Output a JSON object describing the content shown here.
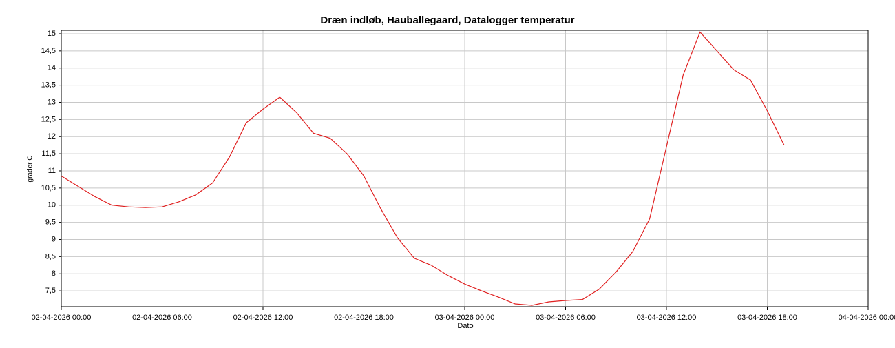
{
  "chart_data": {
    "type": "line",
    "title": "Dræn indløb, Hauballegaard, Datalogger temperatur",
    "x_label": "Dato",
    "y_label": "grader C",
    "x": [
      "02-04-2026 00:00",
      "02-04-2026 01:00",
      "02-04-2026 02:00",
      "02-04-2026 03:00",
      "02-04-2026 04:00",
      "02-04-2026 05:00",
      "02-04-2026 06:00",
      "02-04-2026 07:00",
      "02-04-2026 08:00",
      "02-04-2026 09:00",
      "02-04-2026 10:00",
      "02-04-2026 11:00",
      "02-04-2026 12:00",
      "02-04-2026 13:00",
      "02-04-2026 14:00",
      "02-04-2026 15:00",
      "02-04-2026 16:00",
      "02-04-2026 17:00",
      "02-04-2026 18:00",
      "02-04-2026 19:00",
      "02-04-2026 20:00",
      "02-04-2026 21:00",
      "02-04-2026 22:00",
      "02-04-2026 23:00",
      "03-04-2026 00:00",
      "03-04-2026 01:00",
      "03-04-2026 02:00",
      "03-04-2026 03:00",
      "03-04-2026 04:00",
      "03-04-2026 05:00",
      "03-04-2026 06:00",
      "03-04-2026 07:00",
      "03-04-2026 08:00",
      "03-04-2026 09:00",
      "03-04-2026 10:00",
      "03-04-2026 11:00",
      "03-04-2026 12:00",
      "03-04-2026 13:00",
      "03-04-2026 14:00",
      "03-04-2026 15:00",
      "03-04-2026 16:00",
      "03-04-2026 17:00",
      "03-04-2026 18:00",
      "03-04-2026 19:00"
    ],
    "series": [
      {
        "name": "temperatur",
        "color": "#e02020",
        "values": [
          10.85,
          10.55,
          10.25,
          10.0,
          9.95,
          9.93,
          9.95,
          10.1,
          10.3,
          10.65,
          11.4,
          12.4,
          12.8,
          13.15,
          12.7,
          12.1,
          11.95,
          11.5,
          10.85,
          9.9,
          9.05,
          8.45,
          8.25,
          7.95,
          7.7,
          7.5,
          7.32,
          7.12,
          7.08,
          7.18,
          7.22,
          7.25,
          7.55,
          8.05,
          8.65,
          9.6,
          11.7,
          13.8,
          15.05,
          14.5,
          13.95,
          13.65,
          12.75,
          11.75
        ]
      }
    ],
    "xlim": [
      "02-04-2026 00:00",
      "04-04-2026 00:00"
    ],
    "xticks": [
      "02-04-2026 00:00",
      "02-04-2026 06:00",
      "02-04-2026 12:00",
      "02-04-2026 18:00",
      "03-04-2026 00:00",
      "03-04-2026 06:00",
      "03-04-2026 12:00",
      "03-04-2026 18:00",
      "04-04-2026 00:00"
    ],
    "ylim": [
      7.04,
      15.1
    ],
    "yticks": [
      {
        "value": 7.5,
        "label": "7,5"
      },
      8,
      {
        "value": 8.5,
        "label": "8,5"
      },
      9,
      {
        "value": 9.5,
        "label": "9,5"
      },
      10,
      {
        "value": 10.5,
        "label": "10,5"
      },
      11,
      {
        "value": 11.5,
        "label": "11,5"
      },
      12,
      {
        "value": 12.5,
        "label": "12,5"
      },
      13,
      {
        "value": 13.5,
        "label": "13,5"
      },
      14,
      {
        "value": 14.5,
        "label": "14,5"
      },
      15
    ],
    "grid": true
  }
}
